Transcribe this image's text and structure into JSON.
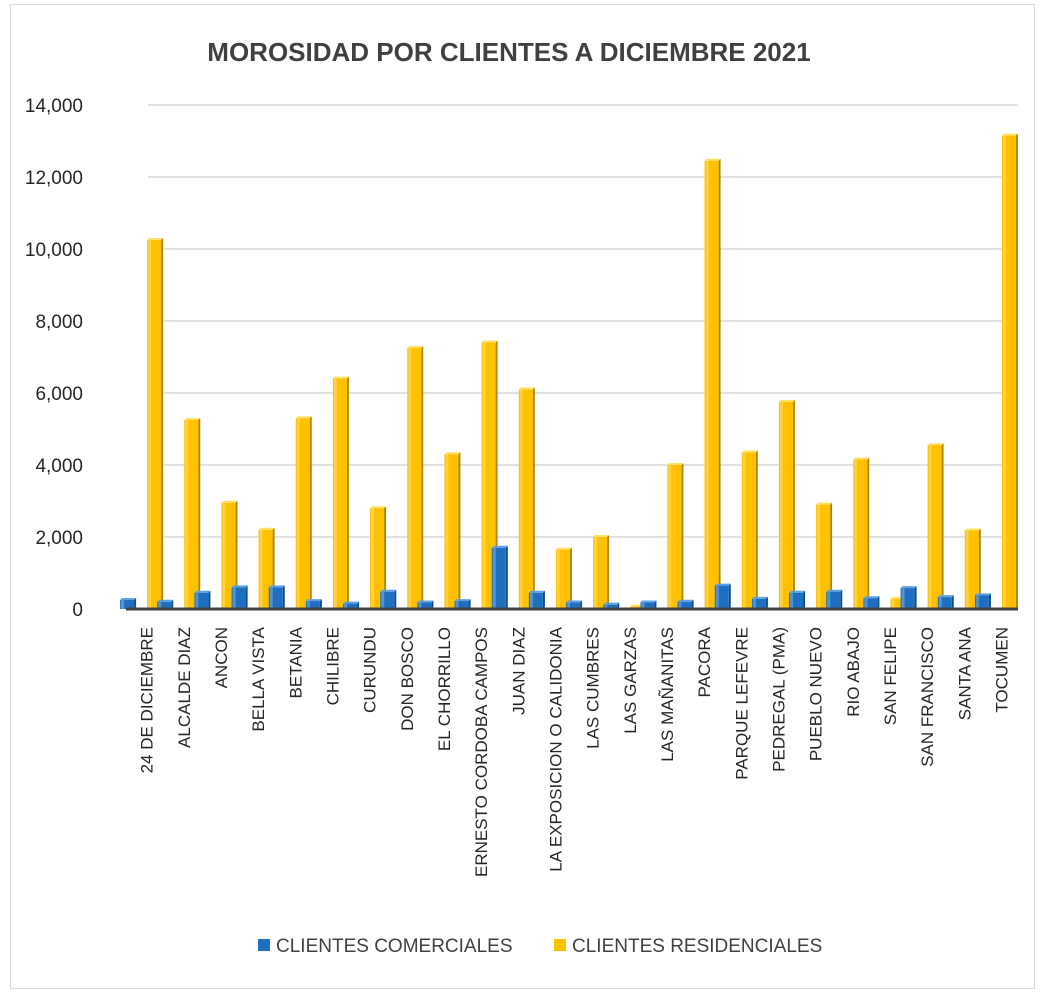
{
  "chart_data": {
    "type": "bar",
    "title": "MOROSIDAD POR CLIENTES A DICIEMBRE 2021",
    "xlabel": "",
    "ylabel": "",
    "ylim": [
      0,
      14000
    ],
    "yticks": [
      "0",
      "2,000",
      "4,000",
      "6,000",
      "8,000",
      "10,000",
      "12,000",
      "14,000"
    ],
    "grid": true,
    "legend_position": "bottom",
    "categories": [
      "24 DE DICIEMBRE",
      "ALCALDE DIAZ",
      "ANCON",
      "BELLA VISTA",
      "BETANIA",
      "CHILIBRE",
      "CURUNDU",
      "DON BOSCO",
      "EL CHORRILLO",
      "ERNESTO CORDOBA CAMPOS",
      "JUAN DIAZ",
      "LA EXPOSICION O CALIDONIA",
      "LAS CUMBRES",
      "LAS GARZAS",
      "LAS MAÑANITAS",
      "PACORA",
      "PARQUE LEFEVRE",
      "PEDREGAL (PMA)",
      "PUEBLO NUEVO",
      "RIO ABAJO",
      "SAN FELIPE",
      "SAN FRANCISCO",
      "SANTA ANA",
      "TOCUMEN"
    ],
    "series": [
      {
        "name": "CLIENTES COMERCIALES",
        "color": "#1f6fc1",
        "values": [
          250,
          200,
          450,
          600,
          600,
          220,
          150,
          480,
          180,
          220,
          1700,
          450,
          180,
          120,
          180,
          200,
          650,
          280,
          450,
          480,
          300,
          580,
          330,
          380
        ]
      },
      {
        "name": "CLIENTES RESIDENCIALES",
        "color": "#ffc000",
        "values": [
          10250,
          5250,
          2950,
          2200,
          5300,
          6400,
          2800,
          7250,
          4300,
          7400,
          6100,
          1650,
          2000,
          70,
          4000,
          12450,
          4350,
          5750,
          2900,
          4150,
          280,
          4550,
          2180,
          13150
        ]
      }
    ]
  }
}
